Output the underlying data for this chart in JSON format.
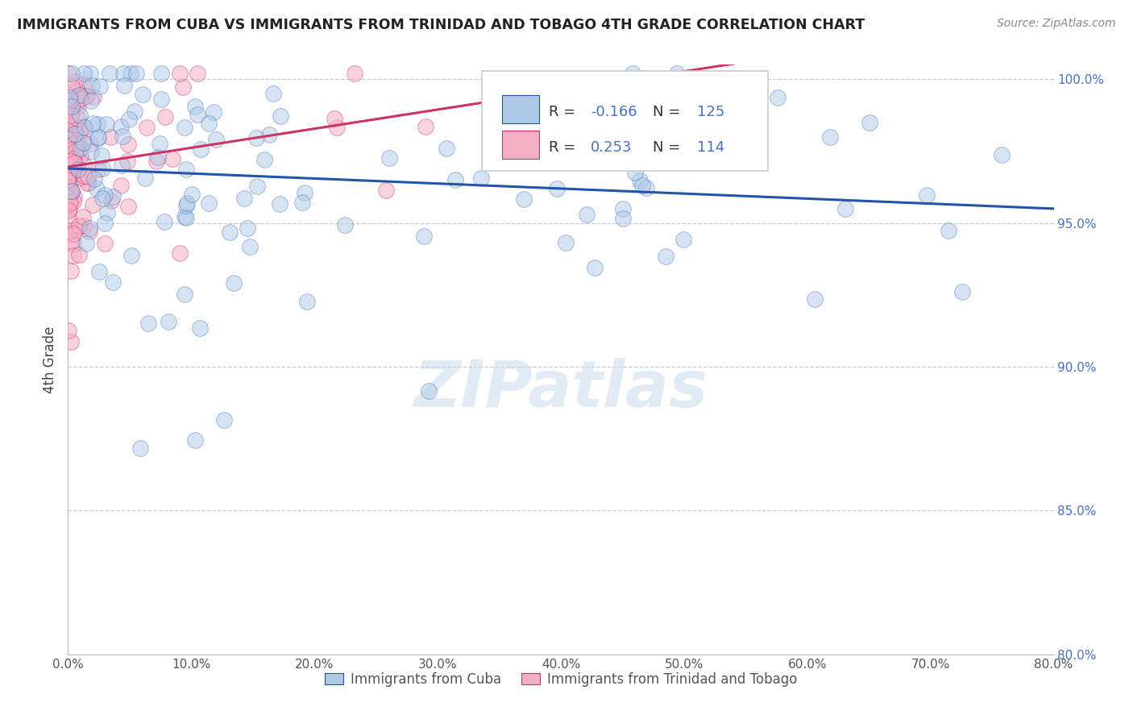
{
  "title": "IMMIGRANTS FROM CUBA VS IMMIGRANTS FROM TRINIDAD AND TOBAGO 4TH GRADE CORRELATION CHART",
  "source": "Source: ZipAtlas.com",
  "ylabel": "4th Grade",
  "legend_label1": "Immigrants from Cuba",
  "legend_label2": "Immigrants from Trinidad and Tobago",
  "R1": -0.166,
  "N1": 125,
  "R2": 0.253,
  "N2": 114,
  "color_blue": "#aec8e8",
  "color_pink": "#f4afc4",
  "trendline_blue": "#2255aa",
  "trendline_pink": "#cc3366",
  "xmin": 0.0,
  "xmax": 0.8,
  "ymin": 0.8,
  "ymax": 1.005,
  "watermark": "ZIPatlas"
}
